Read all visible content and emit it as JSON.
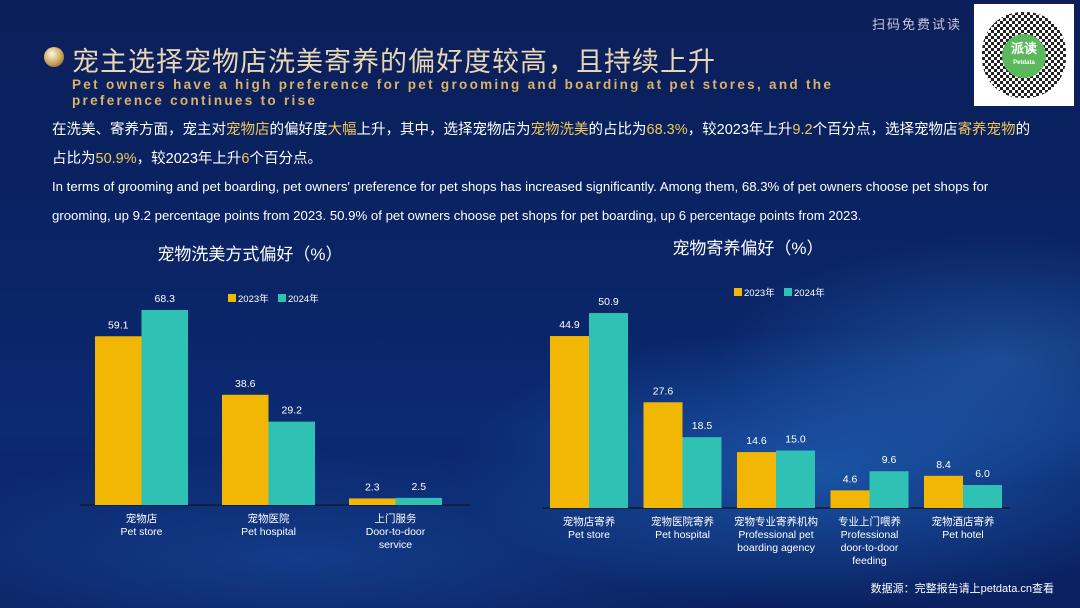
{
  "header": {
    "scan_label": "扫码免费试读",
    "qr_logo_text": "派读",
    "qr_logo_sub": "Petdata",
    "title_cn": "宠主选择宠物店洗美寄养的偏好度较高，且持续上升",
    "title_en": "Pet owners have a high preference for pet grooming and boarding at pet stores, and the preference continues to rise"
  },
  "body": {
    "paragraph_cn": [
      {
        "text": "在洗美、寄养方面，宠主对",
        "hl": false
      },
      {
        "text": "宠物店",
        "hl": true
      },
      {
        "text": "的偏好度",
        "hl": false
      },
      {
        "text": "大幅",
        "hl": true
      },
      {
        "text": "上升，其中，选择宠物店为",
        "hl": false
      },
      {
        "text": "宠物洗美",
        "hl": true
      },
      {
        "text": "的占比为",
        "hl": false
      },
      {
        "text": "68.3%",
        "hl": true
      },
      {
        "text": "，较2023年上升",
        "hl": false
      },
      {
        "text": "9.2",
        "hl": true
      },
      {
        "text": "个百分点，选择宠物店",
        "hl": false
      },
      {
        "text": "寄养宠物",
        "hl": true
      },
      {
        "text": "的占比为",
        "hl": false
      },
      {
        "text": "50.9%",
        "hl": true
      },
      {
        "text": "，较2023年上升",
        "hl": false
      },
      {
        "text": "6",
        "hl": true
      },
      {
        "text": "个百分点。",
        "hl": false
      }
    ],
    "paragraph_en": "In terms of grooming and pet boarding, pet owners' preference for pet shops has increased significantly. Among them, 68.3% of pet owners choose pet shops for grooming, up 9.2 percentage points from 2023. 50.9% of pet owners choose pet shops for pet boarding, up 6 percentage points from 2023."
  },
  "colors": {
    "series_2023": "#f2b705",
    "series_2024": "#2fc1b4",
    "highlight": "#f1c75b"
  },
  "chart_data": [
    {
      "type": "bar",
      "title": "宠物洗美方式偏好（%）",
      "categories": [
        [
          "宠物店",
          "Pet store"
        ],
        [
          "宠物医院",
          "Pet hospital"
        ],
        [
          "上门服务",
          "Door-to-door",
          "service"
        ]
      ],
      "series": [
        {
          "name": "2023年",
          "values": [
            59.1,
            38.6,
            2.3
          ]
        },
        {
          "name": "2024年",
          "values": [
            68.3,
            29.2,
            2.5
          ]
        }
      ],
      "legend_placement": "top-right",
      "grid": false
    },
    {
      "type": "bar",
      "title": "宠物寄养偏好（%）",
      "categories": [
        [
          "宠物店寄养",
          "Pet store"
        ],
        [
          "宠物医院寄养",
          "Pet hospital"
        ],
        [
          "宠物专业寄养机构",
          "Professional pet",
          "boarding agency"
        ],
        [
          "专业上门喂养",
          "Professional",
          "door-to-door",
          "feeding"
        ],
        [
          "宠物酒店寄养",
          "Pet hotel"
        ]
      ],
      "series": [
        {
          "name": "2023年",
          "values": [
            44.9,
            27.6,
            14.6,
            4.6,
            8.4
          ]
        },
        {
          "name": "2024年",
          "values": [
            50.9,
            18.5,
            15.0,
            9.6,
            6.0
          ]
        }
      ],
      "legend_placement": "top-center",
      "grid": false
    }
  ],
  "footer": {
    "source": "数据源：完整报告请上petdata.cn查看"
  }
}
